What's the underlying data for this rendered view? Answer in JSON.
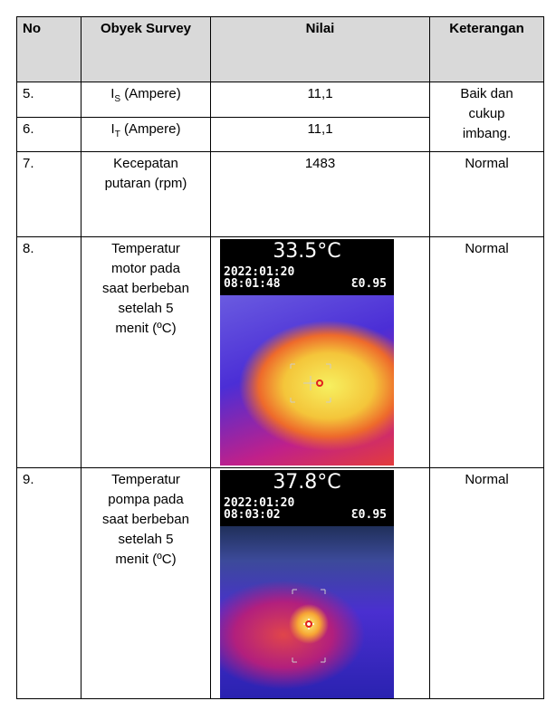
{
  "table": {
    "header": [
      "No",
      "Obyek Survey",
      "Nilai",
      "Keterangan"
    ],
    "rows": [
      {
        "no": "5.",
        "object": {
          "base": "I",
          "sub": "S",
          "rest": " (Ampere)"
        },
        "value": "11,1",
        "note": "Baik dan cukup imbang."
      },
      {
        "no": "6.",
        "object": {
          "base": "I",
          "sub": "T",
          "rest": " (Ampere)"
        },
        "value": "11,1"
      },
      {
        "no": "7.",
        "object": "Kecepatan putaran (rpm)",
        "value": "1483",
        "note": "Normal"
      },
      {
        "no": "8.",
        "object": "Temperatur motor pada saat berbeban setelah 5 menit (ºC)",
        "image": {
          "temperature": "33.5°C",
          "date": "2022:01:20",
          "time": "08:01:48",
          "emissivity": "Ɛ0.95"
        },
        "note": "Normal"
      },
      {
        "no": "9.",
        "object": "Temperatur pompa pada saat berbeban setelah 5 menit (ºC)",
        "image": {
          "temperature": "37.8°C",
          "date": "2022:01:20",
          "time": "08:03:02",
          "emissivity": "Ɛ0.95"
        },
        "note": "Normal"
      }
    ]
  }
}
